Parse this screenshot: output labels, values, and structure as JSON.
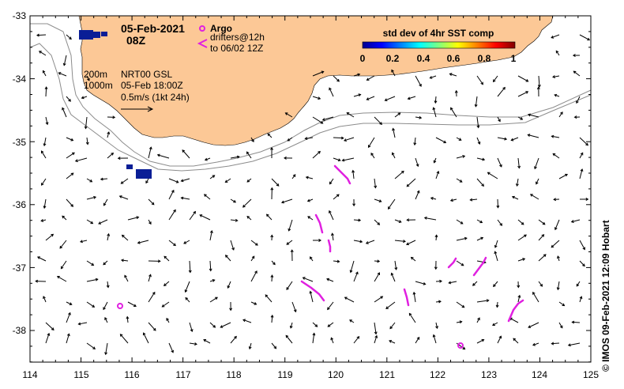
{
  "title": {
    "date": "05-Feb-2021",
    "time": "08Z"
  },
  "legend": {
    "argo_label": "Argo",
    "drifters_label": "drifters@12h",
    "drifters_sub": "to 06/02 12Z",
    "argo_color": "#e020e0",
    "drifter_color": "#e020e0"
  },
  "contours": {
    "depth1": "200m",
    "depth2": "1000m"
  },
  "current_info": {
    "line1": "NRT00 GSL",
    "line2": "05-Feb 18:00Z",
    "line3": "0.5m/s (1kt 24h)"
  },
  "colorbar": {
    "title": "std dev of 4hr SST comp",
    "ticks": [
      "0",
      "0.2",
      "0.4",
      "0.6",
      "0.8",
      "1"
    ]
  },
  "axes": {
    "x_ticks": [
      "114",
      "115",
      "116",
      "117",
      "118",
      "119",
      "120",
      "121",
      "122",
      "123",
      "124",
      "125"
    ],
    "y_ticks": [
      "-33",
      "-34",
      "-35",
      "-36",
      "-37",
      "-38"
    ]
  },
  "credit": "© IMOS 09-Feb-2021 12:09 Hobart",
  "colors": {
    "land": "#fcc896",
    "ocean": "#ffffff",
    "argo": "#e020e0",
    "sst_patch": "#0a1e96"
  }
}
